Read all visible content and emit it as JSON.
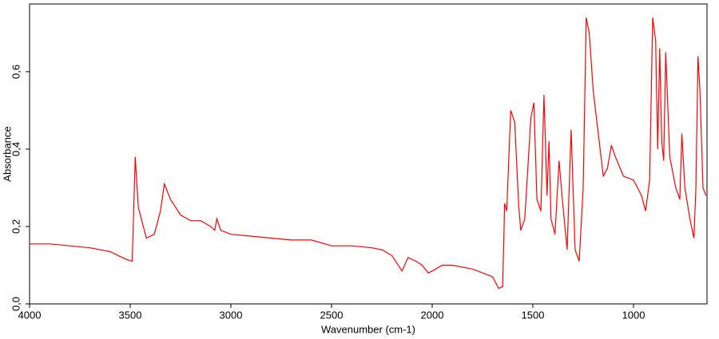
{
  "chart_data": {
    "type": "line",
    "x_label": "Wavenumber (cm-1)",
    "y_label": "Absorbance",
    "xlim": [
      4000,
      635
    ],
    "xticks": [
      4000,
      3500,
      3000,
      2500,
      2000,
      1500,
      1000
    ],
    "ylim": [
      0,
      0.775
    ],
    "yticks": [
      {
        "value": 0,
        "label": "0,0"
      },
      {
        "value": 0.2,
        "label": "0,2"
      },
      {
        "value": 0.4,
        "label": "0,4"
      },
      {
        "value": 0.6,
        "label": "0,6"
      }
    ],
    "series": [
      {
        "name": "Absorbance",
        "color": "#ff0000",
        "x": [
          4000,
          3900,
          3800,
          3700,
          3600,
          3520,
          3490,
          3475,
          3460,
          3420,
          3380,
          3350,
          3330,
          3300,
          3250,
          3200,
          3150,
          3100,
          3080,
          3070,
          3050,
          3000,
          2900,
          2800,
          2700,
          2600,
          2500,
          2400,
          2300,
          2250,
          2200,
          2150,
          2120,
          2080,
          2050,
          2020,
          2000,
          1950,
          1900,
          1800,
          1700,
          1670,
          1650,
          1640,
          1630,
          1610,
          1590,
          1570,
          1560,
          1540,
          1510,
          1495,
          1480,
          1460,
          1445,
          1430,
          1420,
          1410,
          1390,
          1370,
          1350,
          1330,
          1310,
          1290,
          1270,
          1250,
          1235,
          1220,
          1200,
          1150,
          1130,
          1110,
          1090,
          1050,
          1000,
          960,
          940,
          920,
          905,
          890,
          880,
          870,
          860,
          850,
          840,
          820,
          790,
          770,
          760,
          745,
          720,
          700,
          690,
          680,
          670,
          655,
          640
        ],
        "values": [
          0.155,
          0.155,
          0.15,
          0.145,
          0.135,
          0.115,
          0.11,
          0.38,
          0.25,
          0.17,
          0.18,
          0.24,
          0.31,
          0.27,
          0.23,
          0.215,
          0.215,
          0.2,
          0.19,
          0.22,
          0.19,
          0.18,
          0.175,
          0.17,
          0.165,
          0.165,
          0.15,
          0.15,
          0.145,
          0.14,
          0.125,
          0.085,
          0.12,
          0.11,
          0.1,
          0.08,
          0.085,
          0.1,
          0.1,
          0.09,
          0.07,
          0.04,
          0.045,
          0.26,
          0.24,
          0.5,
          0.47,
          0.25,
          0.19,
          0.22,
          0.48,
          0.52,
          0.27,
          0.24,
          0.54,
          0.28,
          0.42,
          0.22,
          0.18,
          0.37,
          0.25,
          0.14,
          0.45,
          0.14,
          0.11,
          0.3,
          0.74,
          0.7,
          0.55,
          0.33,
          0.35,
          0.41,
          0.38,
          0.33,
          0.32,
          0.28,
          0.24,
          0.32,
          0.74,
          0.68,
          0.4,
          0.66,
          0.42,
          0.37,
          0.65,
          0.38,
          0.3,
          0.27,
          0.44,
          0.3,
          0.22,
          0.17,
          0.3,
          0.64,
          0.55,
          0.3,
          0.28
        ]
      }
    ]
  }
}
